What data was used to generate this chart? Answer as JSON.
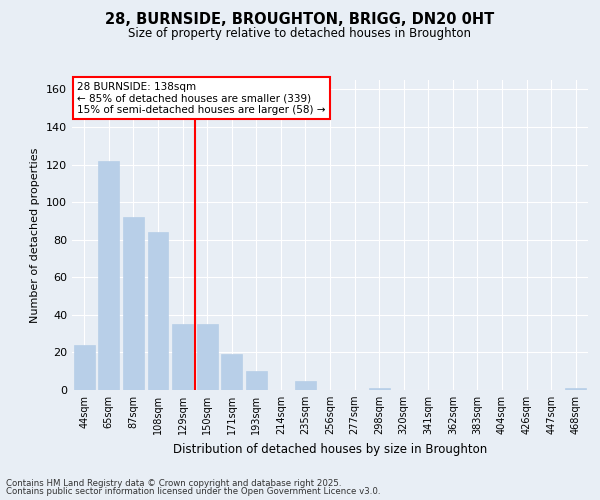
{
  "title": "28, BURNSIDE, BROUGHTON, BRIGG, DN20 0HT",
  "subtitle": "Size of property relative to detached houses in Broughton",
  "xlabel": "Distribution of detached houses by size in Broughton",
  "ylabel": "Number of detached properties",
  "categories": [
    "44sqm",
    "65sqm",
    "87sqm",
    "108sqm",
    "129sqm",
    "150sqm",
    "171sqm",
    "193sqm",
    "214sqm",
    "235sqm",
    "256sqm",
    "277sqm",
    "298sqm",
    "320sqm",
    "341sqm",
    "362sqm",
    "383sqm",
    "404sqm",
    "426sqm",
    "447sqm",
    "468sqm"
  ],
  "values": [
    24,
    122,
    92,
    84,
    35,
    35,
    19,
    10,
    0,
    5,
    0,
    0,
    1,
    0,
    0,
    0,
    0,
    0,
    0,
    0,
    1
  ],
  "bar_color": "#b8cfe8",
  "bar_edgecolor": "#b8cfe8",
  "vline_index": 4.5,
  "vline_color": "red",
  "annotation_title": "28 BURNSIDE: 138sqm",
  "annotation_line1": "← 85% of detached houses are smaller (339)",
  "annotation_line2": "15% of semi-detached houses are larger (58) →",
  "annotation_box_facecolor": "white",
  "annotation_box_edgecolor": "red",
  "ylim": [
    0,
    165
  ],
  "yticks": [
    0,
    20,
    40,
    60,
    80,
    100,
    120,
    140,
    160
  ],
  "background_color": "#e8eef5",
  "grid_color": "white",
  "footer_line1": "Contains HM Land Registry data © Crown copyright and database right 2025.",
  "footer_line2": "Contains public sector information licensed under the Open Government Licence v3.0."
}
